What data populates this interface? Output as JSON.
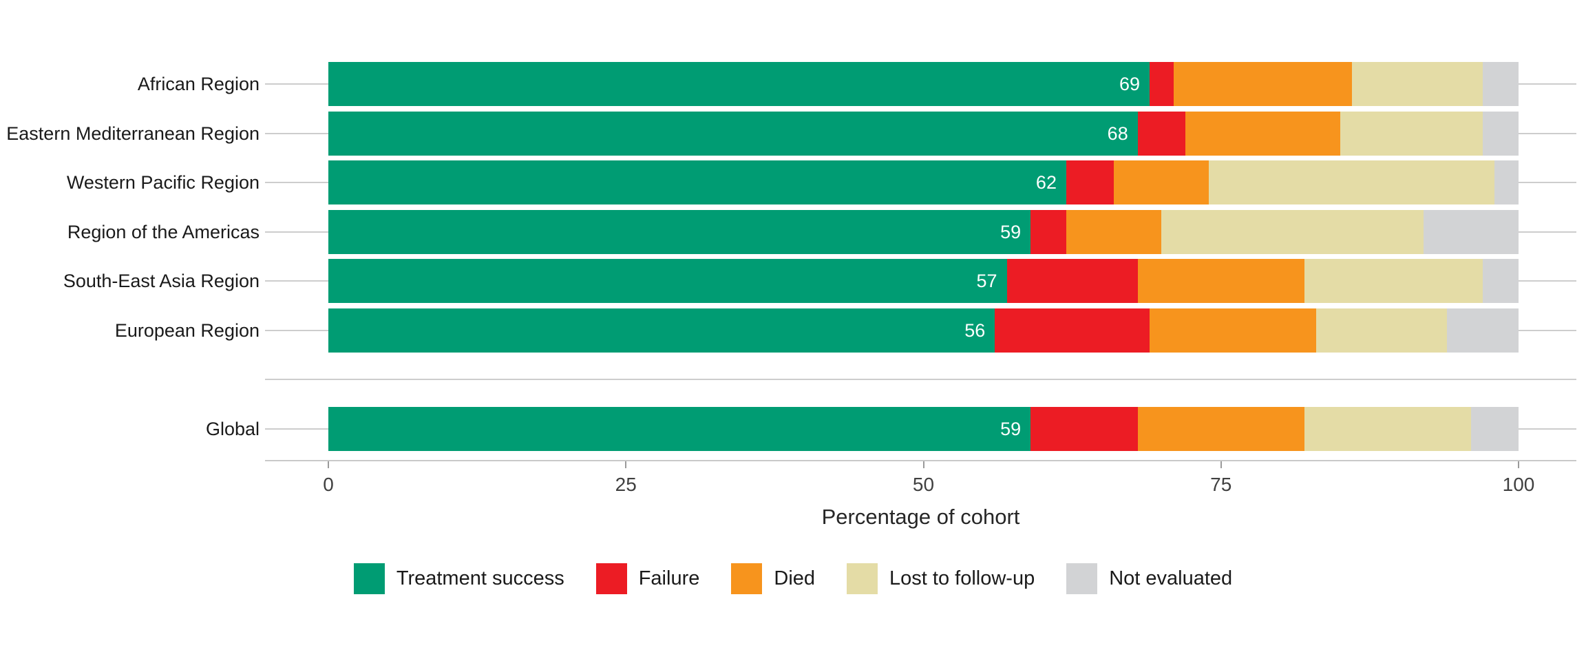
{
  "chart_data": {
    "type": "bar",
    "orientation": "horizontal",
    "stacked": true,
    "title": "",
    "xlabel": "Percentage of cohort",
    "ylabel": "",
    "xlim": [
      0,
      100
    ],
    "xticks": [
      0,
      25,
      50,
      75,
      100
    ],
    "grid": "horizontal-category-lines",
    "legend_position": "bottom",
    "categories": [
      "African Region",
      "Eastern Mediterranean Region",
      "Western Pacific Region",
      "Region of the Americas",
      "South-East Asia Region",
      "European Region",
      "",
      "Global"
    ],
    "series": [
      {
        "name": "Treatment success",
        "color": "#009c73",
        "values": [
          69,
          68,
          62,
          59,
          57,
          56,
          null,
          59
        ]
      },
      {
        "name": "Failure",
        "color": "#ec1c24",
        "values": [
          2,
          4,
          4,
          3,
          11,
          13,
          null,
          9
        ]
      },
      {
        "name": "Died",
        "color": "#f7941d",
        "values": [
          15,
          13,
          8,
          8,
          14,
          14,
          null,
          14
        ]
      },
      {
        "name": "Lost to follow-up",
        "color": "#e4dca6",
        "values": [
          11,
          12,
          24,
          22,
          15,
          11,
          null,
          14
        ]
      },
      {
        "name": "Not evaluated",
        "color": "#d2d3d5",
        "values": [
          3,
          3,
          2,
          8,
          3,
          6,
          null,
          4
        ]
      }
    ],
    "bar_labels": [
      69,
      68,
      62,
      59,
      57,
      56,
      null,
      59
    ]
  },
  "colors": {
    "treatment_success": "#009c73",
    "failure": "#ec1c24",
    "died": "#f7941d",
    "lost_to_follow_up": "#e4dca6",
    "not_evaluated": "#d2d3d5",
    "gridline": "#cdcdcd",
    "axis_line": "#c9c9c9"
  }
}
